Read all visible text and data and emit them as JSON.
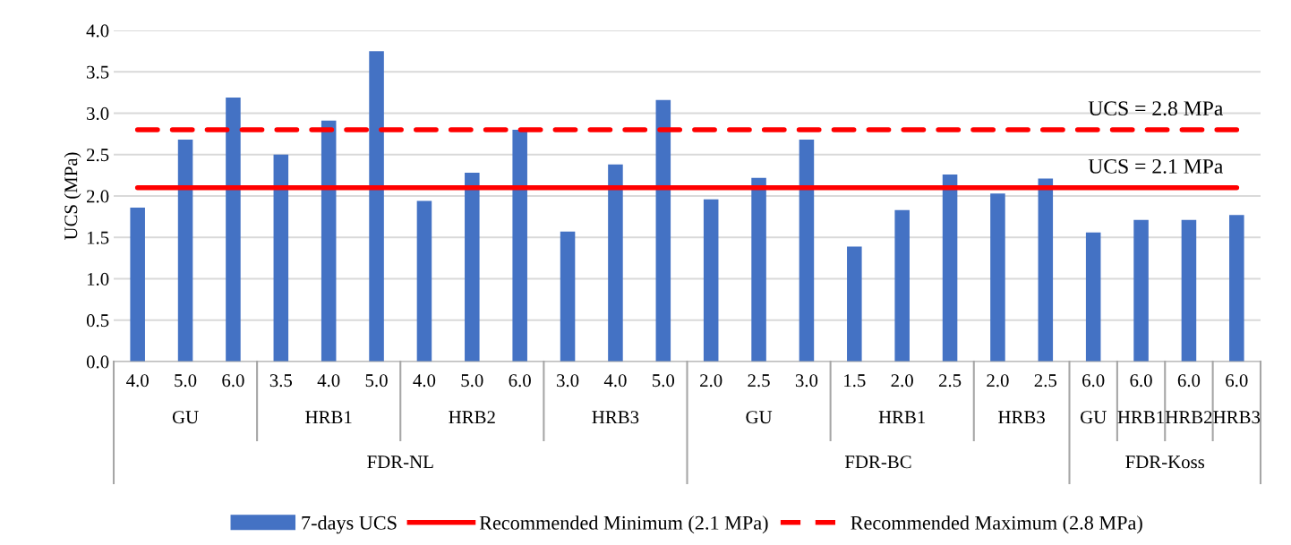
{
  "chart_data": {
    "type": "bar",
    "ylabel": "UCS (MPa)",
    "categories": [
      "4.0",
      "5.0",
      "6.0",
      "3.5",
      "4.0",
      "5.0",
      "4.0",
      "5.0",
      "6.0",
      "3.0",
      "4.0",
      "5.0",
      "2.0",
      "2.5",
      "3.0",
      "1.5",
      "2.0",
      "2.5",
      "2.0",
      "2.5",
      "6.0",
      "6.0",
      "6.0",
      "6.0"
    ],
    "series": [
      {
        "name": "7-days UCS",
        "color": "#4472c4",
        "values": [
          1.86,
          2.68,
          3.19,
          2.5,
          2.91,
          3.75,
          1.94,
          2.28,
          2.8,
          1.57,
          2.38,
          3.16,
          1.96,
          2.22,
          2.68,
          1.39,
          1.83,
          2.26,
          2.03,
          2.21,
          1.56,
          1.71,
          1.71,
          1.77
        ]
      },
      {
        "name": "Recommended Minimum (2.1 MPa)",
        "type": "line",
        "line_style": "solid",
        "color": "#ff0000",
        "values": [
          2.1,
          2.1,
          2.1,
          2.1,
          2.1,
          2.1,
          2.1,
          2.1,
          2.1,
          2.1,
          2.1,
          2.1,
          2.1,
          2.1,
          2.1,
          2.1,
          2.1,
          2.1,
          2.1,
          2.1,
          2.1,
          2.1,
          2.1,
          2.1
        ]
      },
      {
        "name": "Recommended Maximum (2.8 MPa)",
        "type": "line",
        "line_style": "dashed",
        "color": "#ff0000",
        "values": [
          2.8,
          2.8,
          2.8,
          2.8,
          2.8,
          2.8,
          2.8,
          2.8,
          2.8,
          2.8,
          2.8,
          2.8,
          2.8,
          2.8,
          2.8,
          2.8,
          2.8,
          2.8,
          2.8,
          2.8,
          2.8,
          2.8,
          2.8,
          2.8
        ]
      }
    ],
    "annotations": [
      {
        "text": "UCS = 2.8 MPa",
        "y": 2.8
      },
      {
        "text": "UCS = 2.1 MPa",
        "y": 2.1
      },
      "GU",
      "HRB1",
      "HRB2",
      "HRB3",
      "GU",
      "HRB1",
      "HRB3",
      "GU",
      "HRB1",
      "HRB2",
      "HRB3",
      "FDR-NL",
      "FDR-BC",
      "FDR-Koss"
    ],
    "ylim": [
      0,
      4
    ],
    "yticks": [
      {
        "value": 0,
        "label": "0.0"
      },
      {
        "value": 0.5,
        "label": "0.5"
      },
      {
        "value": 1,
        "label": "1.0"
      },
      {
        "value": 1.5,
        "label": "1.5"
      },
      {
        "value": 2,
        "label": "2.0"
      },
      {
        "value": 2.5,
        "label": "2.5"
      },
      {
        "value": 3,
        "label": "3.0"
      },
      {
        "value": 3.5,
        "label": "3.5"
      },
      {
        "value": 4,
        "label": "4.0"
      }
    ],
    "grid": "y",
    "legend": "bottom",
    "marker": "none"
  }
}
